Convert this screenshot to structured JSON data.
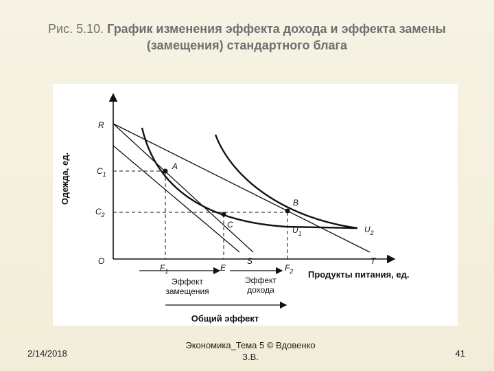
{
  "title": {
    "prefix": "Рис. 5.10.",
    "main": "График изменения эффекта дохода и эффекта замены (замещения) стандартного блага"
  },
  "diagram": {
    "y_axis_label": "Одежда, ед.",
    "x_axis_label": "Продукты питания, ед.",
    "origin": "O",
    "y_points": {
      "R": "R",
      "C1": "C",
      "C1_sub": "1",
      "C2": "C",
      "C2_sub": "2"
    },
    "x_points": {
      "F1": "F",
      "F1_sub": "1",
      "E": "E",
      "S": "S",
      "F2": "F",
      "F2_sub": "2",
      "T": "T"
    },
    "points": {
      "A": "A",
      "B": "B",
      "C": "C"
    },
    "curves": {
      "U1": "U",
      "U1_sub": "1",
      "U2": "U",
      "U2_sub": "2"
    },
    "effects": {
      "substitution_line1": "Эффект",
      "substitution_line2": "замещения",
      "income_line1": "Эффект",
      "income_line2": "дохода",
      "total": "Общий эффект"
    }
  },
  "footer": {
    "date": "2/14/2018",
    "center_line1": "Экономика_Тема 5 © Вдовенко",
    "center_line2": "З.В.",
    "page": "41"
  }
}
